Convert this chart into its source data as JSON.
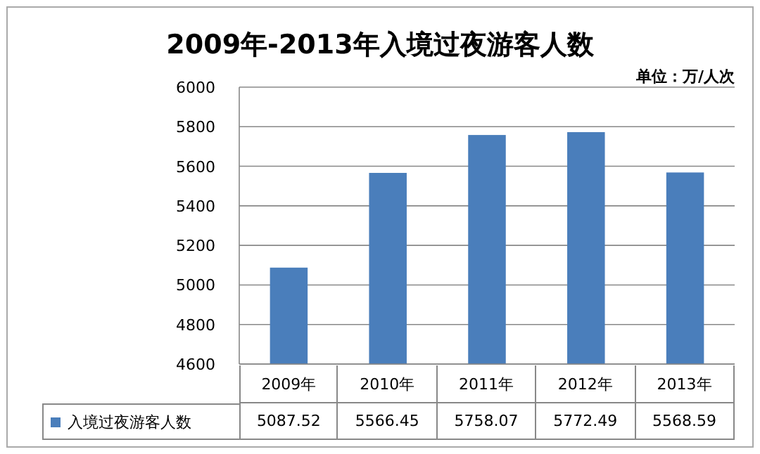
{
  "chart_data": {
    "type": "bar",
    "title": "2009年-2013年入境过夜游客人数",
    "subtitle": "单位：万/人次",
    "categories": [
      "2009年",
      "2010年",
      "2011年",
      "2012年",
      "2013年"
    ],
    "series": [
      {
        "name": "入境过夜游客人数",
        "color": "#4a7ebb",
        "values": [
          5087.52,
          5566.45,
          5758.07,
          5772.49,
          5568.59
        ]
      }
    ],
    "ylim": [
      4600,
      6000
    ],
    "yticks": [
      4600,
      4800,
      5000,
      5200,
      5400,
      5600,
      5800,
      6000
    ],
    "grid": "y",
    "legend": "bottom",
    "data_labels": true
  }
}
